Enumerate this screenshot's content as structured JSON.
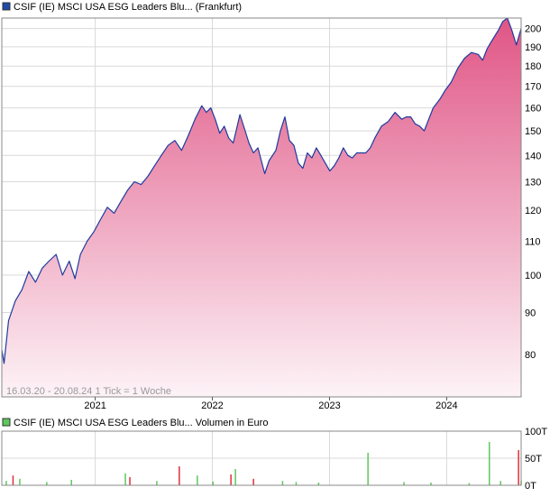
{
  "price_panel": {
    "legend_label": "CSIF (IE) MSCI USA ESG Leaders Blu... (Frankfurt)",
    "legend_color": "#1f4aa8",
    "info_text": "16.03.20 - 20.08.24   1 Tick = 1 Woche"
  },
  "volume_panel": {
    "legend_label": "CSIF (IE) MSCI USA ESG Leaders Blu... Volumen in Euro",
    "legend_color": "#5cc95c"
  },
  "colors": {
    "line": "#1f3a9e",
    "fill_top": "#e05585",
    "fill_bottom": "#fdf3f7",
    "grid": "#d9d9d9",
    "axis": "#555555",
    "volume_up": "#5cc95c",
    "volume_down": "#e0303a"
  },
  "chart_data": [
    {
      "type": "area",
      "scale": "log",
      "ylim": [
        71,
        206
      ],
      "y_ticks": [
        80,
        90,
        100,
        110,
        120,
        130,
        140,
        150,
        160,
        170,
        180,
        190,
        200
      ],
      "x_range": [
        "2020-03-16",
        "2024-08-20"
      ],
      "x_ticks": [
        {
          "label": "2021",
          "date": "2021-01-01"
        },
        {
          "label": "2022",
          "date": "2022-01-01"
        },
        {
          "label": "2023",
          "date": "2023-01-01"
        },
        {
          "label": "2024",
          "date": "2024-01-01"
        }
      ],
      "grid": true,
      "series": [
        {
          "name": "CSIF (IE) MSCI USA ESG Leaders Blu... (Frankfurt)",
          "points": [
            [
              "2020-03-16",
              81
            ],
            [
              "2020-03-23",
              78
            ],
            [
              "2020-04-06",
              88
            ],
            [
              "2020-04-27",
              93
            ],
            [
              "2020-05-18",
              96
            ],
            [
              "2020-06-08",
              101
            ],
            [
              "2020-06-29",
              98
            ],
            [
              "2020-07-20",
              102
            ],
            [
              "2020-08-10",
              104
            ],
            [
              "2020-09-01",
              106
            ],
            [
              "2020-09-21",
              100
            ],
            [
              "2020-10-12",
              104
            ],
            [
              "2020-10-30",
              99
            ],
            [
              "2020-11-16",
              106
            ],
            [
              "2020-12-07",
              110
            ],
            [
              "2020-12-28",
              113
            ],
            [
              "2021-01-18",
              117
            ],
            [
              "2021-02-08",
              121
            ],
            [
              "2021-03-01",
              119
            ],
            [
              "2021-03-22",
              123
            ],
            [
              "2021-04-12",
              127
            ],
            [
              "2021-05-03",
              130
            ],
            [
              "2021-05-24",
              129
            ],
            [
              "2021-06-14",
              132
            ],
            [
              "2021-07-05",
              136
            ],
            [
              "2021-07-26",
              140
            ],
            [
              "2021-08-16",
              144
            ],
            [
              "2021-09-06",
              146
            ],
            [
              "2021-09-27",
              142
            ],
            [
              "2021-10-18",
              148
            ],
            [
              "2021-11-08",
              155
            ],
            [
              "2021-11-29",
              161
            ],
            [
              "2021-12-13",
              158
            ],
            [
              "2021-12-27",
              160
            ],
            [
              "2022-01-10",
              155
            ],
            [
              "2022-01-24",
              149
            ],
            [
              "2022-02-07",
              152
            ],
            [
              "2022-02-21",
              147
            ],
            [
              "2022-03-07",
              145
            ],
            [
              "2022-03-28",
              157
            ],
            [
              "2022-04-11",
              151
            ],
            [
              "2022-04-25",
              145
            ],
            [
              "2022-05-09",
              141
            ],
            [
              "2022-05-23",
              143
            ],
            [
              "2022-06-13",
              133
            ],
            [
              "2022-06-27",
              138
            ],
            [
              "2022-07-18",
              142
            ],
            [
              "2022-08-01",
              150
            ],
            [
              "2022-08-15",
              156
            ],
            [
              "2022-08-29",
              146
            ],
            [
              "2022-09-12",
              144
            ],
            [
              "2022-09-26",
              137
            ],
            [
              "2022-10-10",
              135
            ],
            [
              "2022-10-24",
              141
            ],
            [
              "2022-11-07",
              139
            ],
            [
              "2022-11-21",
              143
            ],
            [
              "2022-12-05",
              140
            ],
            [
              "2022-12-19",
              137
            ],
            [
              "2023-01-02",
              134
            ],
            [
              "2023-01-16",
              136
            ],
            [
              "2023-01-30",
              139
            ],
            [
              "2023-02-13",
              143
            ],
            [
              "2023-02-27",
              140
            ],
            [
              "2023-03-13",
              139
            ],
            [
              "2023-03-27",
              141
            ],
            [
              "2023-04-10",
              141
            ],
            [
              "2023-04-24",
              141
            ],
            [
              "2023-05-08",
              143
            ],
            [
              "2023-05-22",
              147
            ],
            [
              "2023-06-12",
              152
            ],
            [
              "2023-07-03",
              154
            ],
            [
              "2023-07-24",
              158
            ],
            [
              "2023-08-14",
              155
            ],
            [
              "2023-08-28",
              156
            ],
            [
              "2023-09-11",
              156
            ],
            [
              "2023-09-25",
              153
            ],
            [
              "2023-10-09",
              152
            ],
            [
              "2023-10-23",
              150
            ],
            [
              "2023-11-06",
              155
            ],
            [
              "2023-11-20",
              160
            ],
            [
              "2023-12-11",
              164
            ],
            [
              "2023-12-27",
              168
            ],
            [
              "2024-01-15",
              172
            ],
            [
              "2024-02-05",
              179
            ],
            [
              "2024-02-26",
              184
            ],
            [
              "2024-03-18",
              187
            ],
            [
              "2024-04-08",
              186
            ],
            [
              "2024-04-22",
              183
            ],
            [
              "2024-05-06",
              189
            ],
            [
              "2024-05-20",
              193
            ],
            [
              "2024-06-10",
              199
            ],
            [
              "2024-06-24",
              204
            ],
            [
              "2024-07-08",
              206
            ],
            [
              "2024-07-22",
              199
            ],
            [
              "2024-08-05",
              191
            ],
            [
              "2024-08-20",
              200
            ]
          ]
        }
      ]
    },
    {
      "type": "bar",
      "ylim": [
        0,
        100
      ],
      "y_ticks": [
        {
          "label": "0T",
          "value": 0
        },
        {
          "label": "50T",
          "value": 50
        },
        {
          "label": "100T",
          "value": 100
        }
      ],
      "series": [
        {
          "name": "Volumen in Euro",
          "bars": [
            [
              "2020-03-30",
              8,
              "up"
            ],
            [
              "2020-04-20",
              18,
              "down"
            ],
            [
              "2020-05-11",
              12,
              "up"
            ],
            [
              "2020-08-03",
              6,
              "up"
            ],
            [
              "2020-10-19",
              10,
              "up"
            ],
            [
              "2021-04-05",
              22,
              "up"
            ],
            [
              "2021-04-19",
              15,
              "down"
            ],
            [
              "2021-07-12",
              8,
              "up"
            ],
            [
              "2021-09-20",
              35,
              "down"
            ],
            [
              "2021-11-15",
              18,
              "up"
            ],
            [
              "2022-01-03",
              7,
              "up"
            ],
            [
              "2022-02-28",
              20,
              "down"
            ],
            [
              "2022-03-14",
              30,
              "up"
            ],
            [
              "2022-05-09",
              12,
              "down"
            ],
            [
              "2022-08-08",
              8,
              "up"
            ],
            [
              "2022-09-19",
              6,
              "up"
            ],
            [
              "2022-11-28",
              5,
              "up"
            ],
            [
              "2023-05-01",
              60,
              "up"
            ],
            [
              "2023-08-21",
              6,
              "up"
            ],
            [
              "2023-11-13",
              5,
              "up"
            ],
            [
              "2024-03-11",
              4,
              "up"
            ],
            [
              "2024-05-13",
              80,
              "up"
            ],
            [
              "2024-06-17",
              8,
              "up"
            ],
            [
              "2024-08-12",
              65,
              "down"
            ],
            [
              "2024-08-20",
              8,
              "up"
            ]
          ]
        }
      ]
    }
  ]
}
